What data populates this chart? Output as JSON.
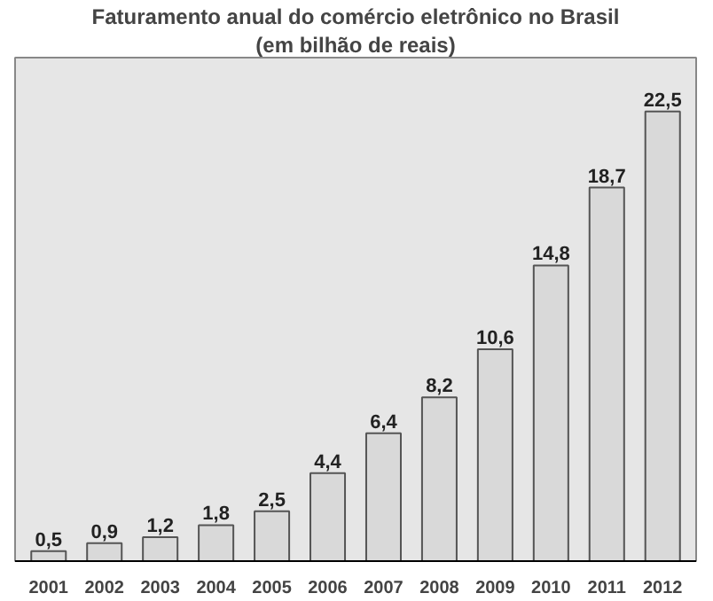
{
  "chart_data": {
    "type": "bar",
    "title": "Faturamento anual do comércio eletrônico no Brasil",
    "subtitle": "(em bilhão de reais)",
    "categories": [
      "2001",
      "2002",
      "2003",
      "2004",
      "2005",
      "2006",
      "2007",
      "2008",
      "2009",
      "2010",
      "2011",
      "2012"
    ],
    "values": [
      0.5,
      0.9,
      1.2,
      1.8,
      2.5,
      4.4,
      6.4,
      8.2,
      10.6,
      14.8,
      18.7,
      22.5
    ],
    "value_labels": [
      "0,5",
      "0,9",
      "1,2",
      "1,8",
      "2,5",
      "4,4",
      "6,4",
      "8,2",
      "10,6",
      "14,8",
      "18,7",
      "22,5"
    ],
    "color": "#d9d9d9",
    "grid": false
  }
}
